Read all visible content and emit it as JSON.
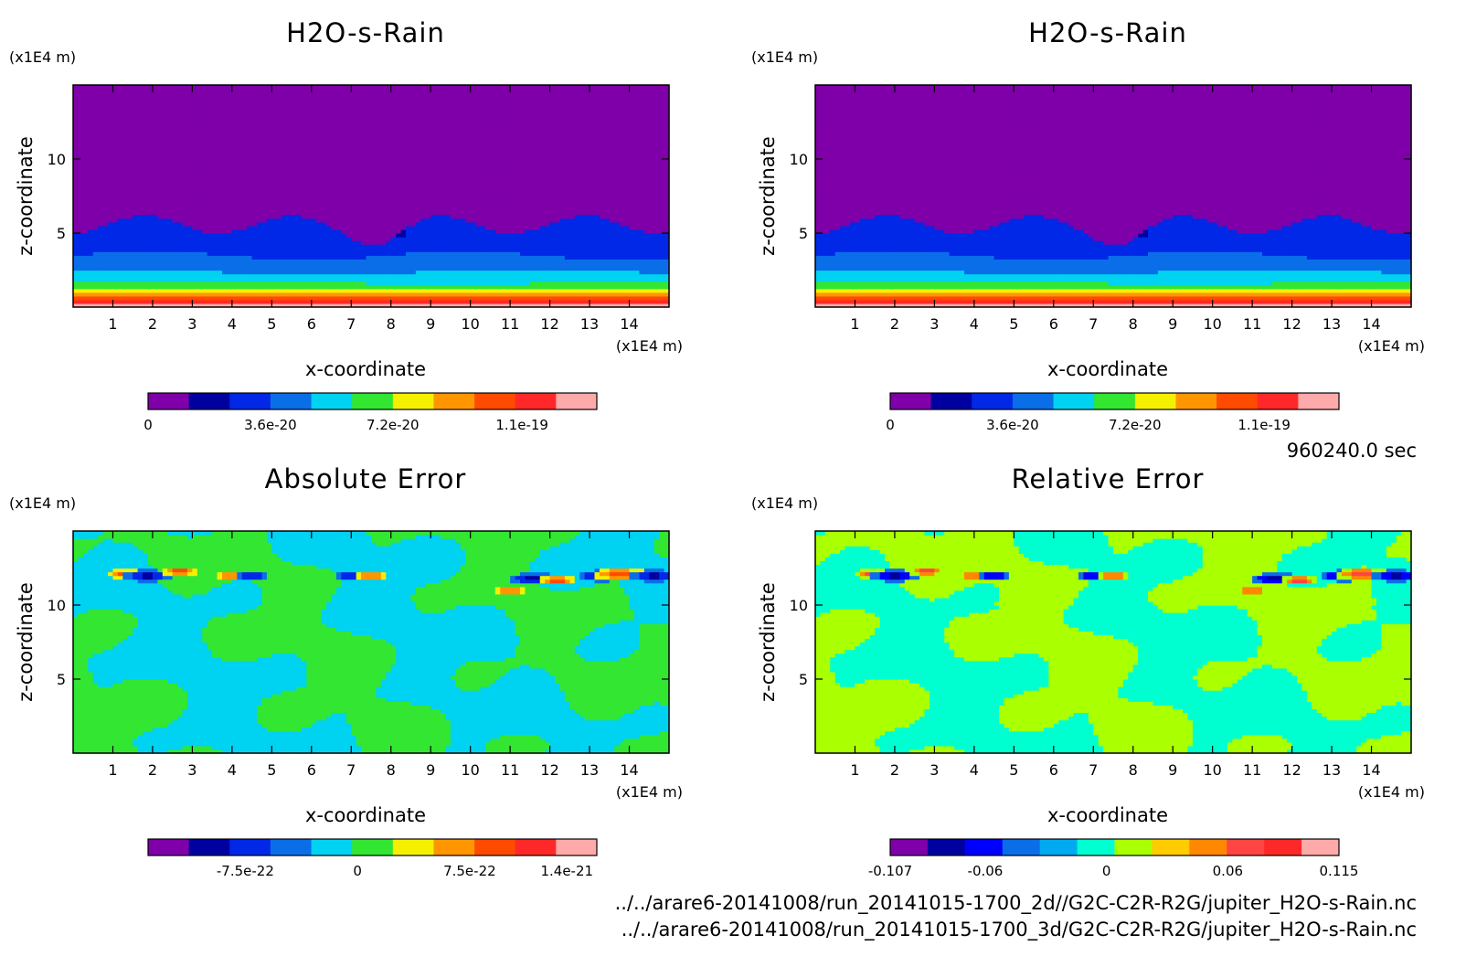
{
  "figure": {
    "time_label": "960240.0 sec",
    "source_files": [
      "../../arare6-20141008/run_20141015-1700_2d//G2C-C2R-R2G/jupiter_H2O-s-Rain.nc",
      "../../arare6-20141008/run_20141015-1700_3d/G2C-C2R-R2G/jupiter_H2O-s-Rain.nc"
    ]
  },
  "chart_data": [
    {
      "type": "heatmap",
      "title": "H2O-s-Rain",
      "xlabel": "x-coordinate",
      "ylabel": "z-coordinate",
      "x_unit": "(x1E4 m)",
      "y_unit": "(x1E4 m)",
      "xlim": [
        0,
        15
      ],
      "ylim": [
        0,
        15
      ],
      "x_ticks": [
        1,
        2,
        3,
        4,
        5,
        6,
        7,
        8,
        9,
        10,
        11,
        12,
        13,
        14
      ],
      "y_ticks": [
        5,
        10
      ],
      "colorbar": {
        "colors": [
          "#7f00a8",
          "#0000a0",
          "#0028e6",
          "#0a6ee8",
          "#00d2f2",
          "#32e632",
          "#f5f000",
          "#ff9600",
          "#ff4b00",
          "#ff2828",
          "#ffaaaa"
        ],
        "tick_labels": [
          "0",
          "3.6e-20",
          "7.2e-20",
          "1.1e-19"
        ],
        "tick_values": [
          0,
          3.6e-20,
          7.2e-20,
          1.1e-19
        ],
        "vmin": 0,
        "vmax": 1.32e-19
      },
      "field": "layered"
    },
    {
      "type": "heatmap",
      "title": "H2O-s-Rain",
      "xlabel": "x-coordinate",
      "ylabel": "z-coordinate",
      "x_unit": "(x1E4 m)",
      "y_unit": "(x1E4 m)",
      "xlim": [
        0,
        15
      ],
      "ylim": [
        0,
        15
      ],
      "x_ticks": [
        1,
        2,
        3,
        4,
        5,
        6,
        7,
        8,
        9,
        10,
        11,
        12,
        13,
        14
      ],
      "y_ticks": [
        5,
        10
      ],
      "colorbar": {
        "colors": [
          "#7f00a8",
          "#0000a0",
          "#0028e6",
          "#0a6ee8",
          "#00d2f2",
          "#32e632",
          "#f5f000",
          "#ff9600",
          "#ff4b00",
          "#ff2828",
          "#ffaaaa"
        ],
        "tick_labels": [
          "0",
          "3.6e-20",
          "7.2e-20",
          "1.1e-19"
        ],
        "tick_values": [
          0,
          3.6e-20,
          7.2e-20,
          1.1e-19
        ],
        "vmin": 0,
        "vmax": 1.32e-19
      },
      "field": "layered"
    },
    {
      "type": "heatmap",
      "title": "Absolute Error",
      "xlabel": "x-coordinate",
      "ylabel": "z-coordinate",
      "x_unit": "(x1E4 m)",
      "y_unit": "(x1E4 m)",
      "xlim": [
        0,
        15
      ],
      "ylim": [
        0,
        15
      ],
      "x_ticks": [
        1,
        2,
        3,
        4,
        5,
        6,
        7,
        8,
        9,
        10,
        11,
        12,
        13,
        14
      ],
      "y_ticks": [
        5,
        10
      ],
      "colorbar": {
        "colors": [
          "#7f00a8",
          "#0000a0",
          "#0028e6",
          "#0a6ee8",
          "#00d2f2",
          "#32e632",
          "#f5f000",
          "#ff9600",
          "#ff4b00",
          "#ff2828",
          "#ffaaaa"
        ],
        "tick_labels": [
          "-7.5e-22",
          "0",
          "7.5e-22",
          "1.4e-21"
        ],
        "tick_values": [
          -7.5e-22,
          0,
          7.5e-22,
          1.4e-21
        ],
        "vmin": -1.4e-21,
        "vmax": 1.6e-21
      },
      "field": "error",
      "bg_low": "#00d2f2",
      "bg_high": "#32e632",
      "spots": [
        {
          "x": 1.4,
          "z": 12.1,
          "s": 0.35,
          "v": 1
        },
        {
          "x": 1.9,
          "z": 12.0,
          "s": 0.4,
          "v": -1
        },
        {
          "x": 2.7,
          "z": 12.3,
          "s": 0.3,
          "v": 1
        },
        {
          "x": 4.0,
          "z": 12.0,
          "s": 0.3,
          "v": 1
        },
        {
          "x": 4.5,
          "z": 12.0,
          "s": 0.3,
          "v": -1
        },
        {
          "x": 7.0,
          "z": 12.0,
          "s": 0.3,
          "v": -1
        },
        {
          "x": 7.5,
          "z": 12.0,
          "s": 0.3,
          "v": 1
        },
        {
          "x": 11.0,
          "z": 11.0,
          "s": 0.3,
          "v": 1
        },
        {
          "x": 11.6,
          "z": 11.8,
          "s": 0.4,
          "v": -1
        },
        {
          "x": 12.2,
          "z": 11.7,
          "s": 0.3,
          "v": 1
        },
        {
          "x": 13.3,
          "z": 12.0,
          "s": 0.4,
          "v": -1
        },
        {
          "x": 13.8,
          "z": 12.1,
          "s": 0.45,
          "v": 1
        },
        {
          "x": 14.6,
          "z": 12.0,
          "s": 0.4,
          "v": -1
        }
      ]
    },
    {
      "type": "heatmap",
      "title": "Relative Error",
      "xlabel": "x-coordinate",
      "ylabel": "z-coordinate",
      "x_unit": "(x1E4 m)",
      "y_unit": "(x1E4 m)",
      "xlim": [
        0,
        15
      ],
      "ylim": [
        0,
        15
      ],
      "x_ticks": [
        1,
        2,
        3,
        4,
        5,
        6,
        7,
        8,
        9,
        10,
        11,
        12,
        13,
        14
      ],
      "y_ticks": [
        5,
        10
      ],
      "colorbar": {
        "colors": [
          "#7f00a8",
          "#0000a0",
          "#0000ff",
          "#0a6ee8",
          "#00aaf0",
          "#00ffd0",
          "#aaff00",
          "#ffcc00",
          "#ff8800",
          "#ff4444",
          "#ff2828",
          "#ffaaaa"
        ],
        "tick_labels": [
          "-0.107",
          "-0.06",
          "0",
          "0.06",
          "0.115"
        ],
        "tick_values": [
          -0.107,
          -0.06,
          0,
          0.06,
          0.115
        ],
        "vmin": -0.107,
        "vmax": 0.115
      },
      "field": "error",
      "bg_low": "#00ffd0",
      "bg_high": "#aaff00",
      "spots": [
        {
          "x": 1.5,
          "z": 12.1,
          "s": 0.35,
          "v": 1
        },
        {
          "x": 2.0,
          "z": 12.0,
          "s": 0.4,
          "v": -1
        },
        {
          "x": 2.8,
          "z": 12.3,
          "s": 0.3,
          "v": 1
        },
        {
          "x": 4.0,
          "z": 12.0,
          "s": 0.3,
          "v": 1
        },
        {
          "x": 4.5,
          "z": 12.0,
          "s": 0.3,
          "v": -1
        },
        {
          "x": 7.0,
          "z": 12.0,
          "s": 0.3,
          "v": -1
        },
        {
          "x": 7.5,
          "z": 12.0,
          "s": 0.3,
          "v": 1
        },
        {
          "x": 11.0,
          "z": 11.0,
          "s": 0.3,
          "v": 1
        },
        {
          "x": 11.6,
          "z": 11.8,
          "s": 0.4,
          "v": -1
        },
        {
          "x": 12.2,
          "z": 11.7,
          "s": 0.3,
          "v": 1
        },
        {
          "x": 13.3,
          "z": 12.0,
          "s": 0.4,
          "v": -1
        },
        {
          "x": 13.8,
          "z": 12.1,
          "s": 0.45,
          "v": 1
        },
        {
          "x": 14.6,
          "z": 12.0,
          "s": 0.4,
          "v": -1
        }
      ]
    }
  ]
}
